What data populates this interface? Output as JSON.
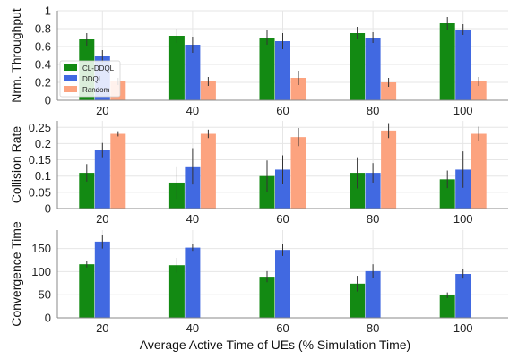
{
  "chart_data": [
    {
      "type": "bar",
      "categories": [
        "20",
        "40",
        "60",
        "80",
        "100"
      ],
      "ylabel": "Nrm. Throughput",
      "ylim": [
        0,
        1
      ],
      "yticks": [
        "0",
        "0.2",
        "0.4",
        "0.6",
        "0.8",
        "1"
      ],
      "grid": true,
      "legend_position": "center-left",
      "series": [
        {
          "name": "CL-DDQL",
          "color": "#138a13",
          "values": [
            0.68,
            0.72,
            0.7,
            0.75,
            0.86
          ],
          "errors": [
            0.07,
            0.08,
            0.08,
            0.07,
            0.07
          ]
        },
        {
          "name": "DDQL",
          "color": "#4169e1",
          "values": [
            0.49,
            0.62,
            0.66,
            0.7,
            0.79
          ],
          "errors": [
            0.07,
            0.09,
            0.09,
            0.06,
            0.06
          ]
        },
        {
          "name": "Random",
          "color": "#fca37f",
          "values": [
            0.21,
            0.21,
            0.25,
            0.2,
            0.21
          ],
          "errors": [
            0.04,
            0.05,
            0.08,
            0.05,
            0.05
          ]
        }
      ]
    },
    {
      "type": "bar",
      "categories": [
        "20",
        "40",
        "60",
        "80",
        "100"
      ],
      "ylabel": "Collision Rate",
      "ylim": [
        0,
        0.27
      ],
      "yticks": [
        "0",
        "0.05",
        "0.1",
        "0.15",
        "0.2",
        "0.25"
      ],
      "grid": true,
      "series": [
        {
          "name": "CL-DDQL",
          "color": "#138a13",
          "values": [
            0.11,
            0.08,
            0.1,
            0.11,
            0.09
          ],
          "errors": [
            0.027,
            0.05,
            0.048,
            0.048,
            0.027
          ]
        },
        {
          "name": "DDQL",
          "color": "#4169e1",
          "values": [
            0.18,
            0.13,
            0.12,
            0.11,
            0.12
          ],
          "errors": [
            0.022,
            0.056,
            0.044,
            0.03,
            0.056
          ]
        },
        {
          "name": "Random",
          "color": "#fca37f",
          "values": [
            0.23,
            0.23,
            0.22,
            0.24,
            0.23
          ],
          "errors": [
            0.008,
            0.013,
            0.028,
            0.023,
            0.022
          ]
        }
      ]
    },
    {
      "type": "bar",
      "categories": [
        "20",
        "40",
        "60",
        "80",
        "100"
      ],
      "xlabel": "Average Active Time of UEs (% Simulation Time)",
      "ylabel": "Convergence Time",
      "ylim": [
        0,
        190
      ],
      "yticks": [
        "0",
        "50",
        "100",
        "150"
      ],
      "grid": true,
      "series": [
        {
          "name": "CL-DDQL",
          "color": "#138a13",
          "values": [
            116,
            114,
            89,
            74,
            49
          ],
          "errors": [
            7,
            16,
            12,
            17,
            6
          ]
        },
        {
          "name": "DDQL",
          "color": "#4169e1",
          "values": [
            165,
            152,
            147,
            101,
            95
          ],
          "errors": [
            15,
            7,
            13,
            15,
            10
          ]
        }
      ]
    }
  ]
}
